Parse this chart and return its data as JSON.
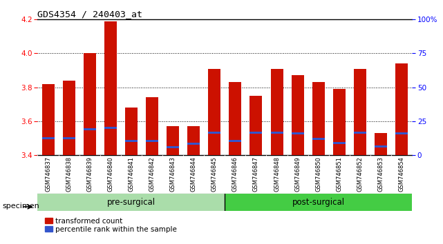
{
  "title": "GDS4354 / 240403_at",
  "samples": [
    "GSM746837",
    "GSM746838",
    "GSM746839",
    "GSM746840",
    "GSM746841",
    "GSM746842",
    "GSM746843",
    "GSM746844",
    "GSM746845",
    "GSM746846",
    "GSM746847",
    "GSM746848",
    "GSM746849",
    "GSM746850",
    "GSM746851",
    "GSM746852",
    "GSM746853",
    "GSM746854"
  ],
  "transformed_count": [
    3.82,
    3.84,
    4.0,
    4.19,
    3.68,
    3.74,
    3.57,
    3.57,
    3.91,
    3.83,
    3.75,
    3.91,
    3.87,
    3.83,
    3.79,
    3.91,
    3.53,
    3.94
  ],
  "percentile_positions": [
    3.493,
    3.493,
    3.547,
    3.555,
    3.478,
    3.478,
    3.44,
    3.46,
    3.525,
    3.475,
    3.525,
    3.525,
    3.52,
    3.49,
    3.463,
    3.525,
    3.445,
    3.52
  ],
  "ymin": 3.4,
  "ymax": 4.2,
  "y_ticks": [
    3.4,
    3.6,
    3.8,
    4.0,
    4.2
  ],
  "right_y_ticks": [
    0,
    25,
    50,
    75,
    100
  ],
  "right_y_labels": [
    "0",
    "25",
    "50",
    "75",
    "100%"
  ],
  "bar_color": "#cc1100",
  "percentile_color": "#3355cc",
  "groups": [
    {
      "label": "pre-surgical",
      "start": 0,
      "end": 9,
      "color": "#aaddaa"
    },
    {
      "label": "post-surgical",
      "start": 9,
      "end": 18,
      "color": "#44cc44"
    }
  ],
  "legend_items": [
    {
      "label": "transformed count",
      "color": "#cc1100"
    },
    {
      "label": "percentile rank within the sample",
      "color": "#3355cc"
    }
  ],
  "background_color": "#ffffff"
}
